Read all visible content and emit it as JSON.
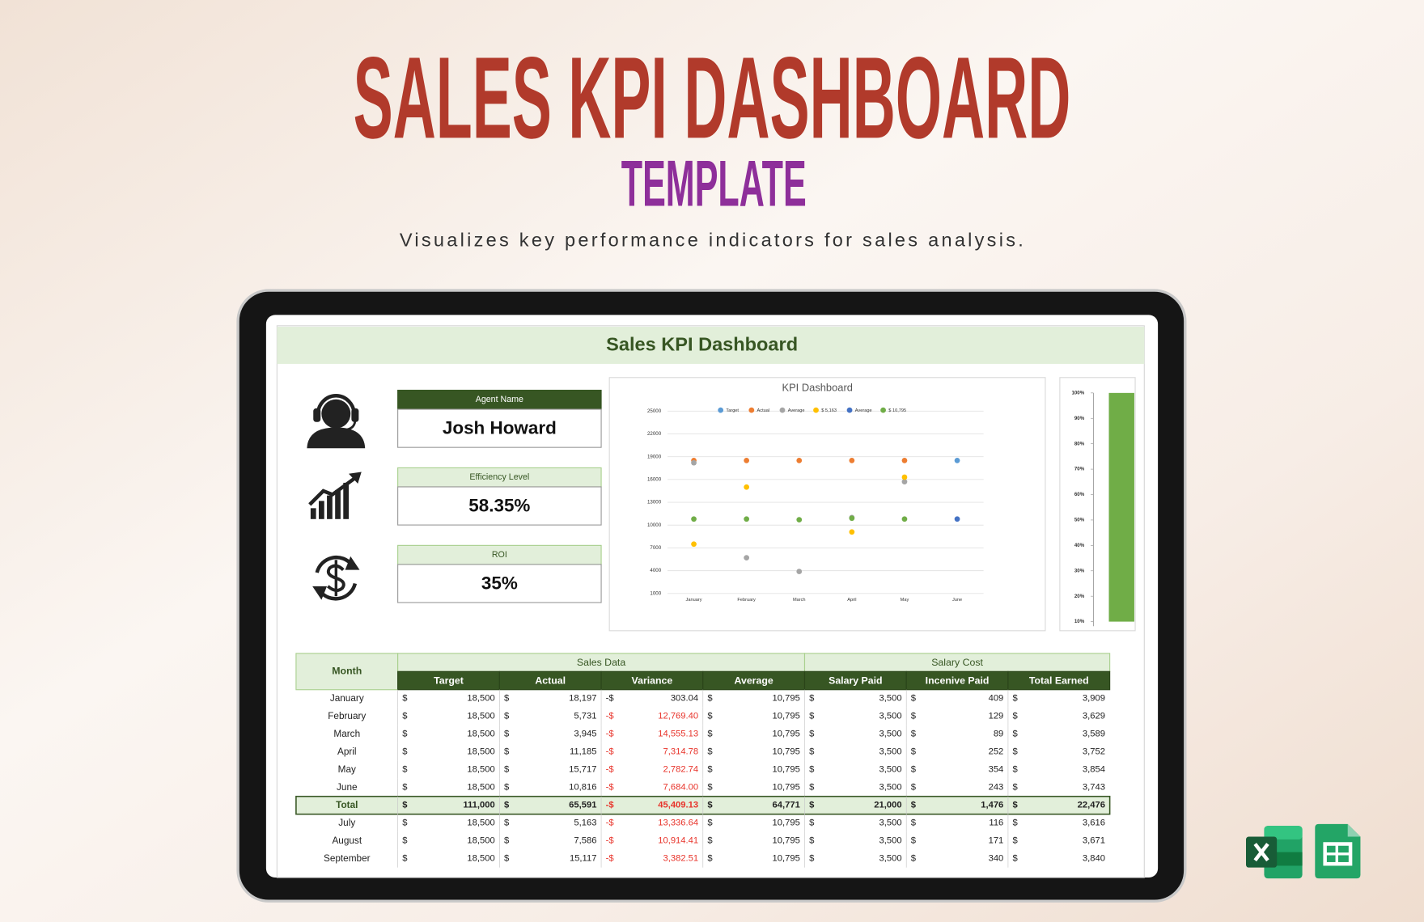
{
  "header": {
    "title": "SALES KPI DASHBOARD",
    "subtitle": "TEMPLATE",
    "description": "Visualizes key performance indicators for sales analysis."
  },
  "dashboard": {
    "title": "Sales KPI Dashboard",
    "cards": [
      {
        "label": "Agent Name",
        "value": "Josh Howard"
      },
      {
        "label": "Efficiency Level",
        "value": "58.35%"
      },
      {
        "label": "ROI",
        "value": "35%"
      }
    ]
  },
  "chart_data": [
    {
      "type": "scatter",
      "title": "KPI Dashboard",
      "categories": [
        "January",
        "February",
        "March",
        "April",
        "May",
        "June"
      ],
      "series": [
        {
          "name": "Target",
          "color": "#5b9bd5",
          "values": [
            null,
            null,
            null,
            null,
            null,
            18500
          ]
        },
        {
          "name": "Actual",
          "color": "#ed7d31",
          "values": [
            18500,
            18500,
            18500,
            18500,
            18500,
            null
          ]
        },
        {
          "name": "Average",
          "color": "#a5a5a5",
          "values": [
            18200,
            5700,
            3900,
            11000,
            15700,
            null
          ]
        },
        {
          "name": "$ 5,163",
          "color": "#ffc000",
          "values": [
            7500,
            15000,
            null,
            9100,
            16300,
            null
          ]
        },
        {
          "name": "Average",
          "color": "#4472c4",
          "values": [
            null,
            null,
            null,
            null,
            null,
            10800
          ]
        },
        {
          "name": "$ 10,795",
          "color": "#70ad47",
          "values": [
            10800,
            10800,
            10700,
            10900,
            10800,
            null
          ]
        }
      ],
      "ylim": [
        1000,
        25000
      ],
      "yticks": [
        1000,
        4000,
        7000,
        10000,
        13000,
        16000,
        19000,
        22000,
        25000
      ],
      "grid": true
    },
    {
      "type": "bar",
      "categories": [
        null
      ],
      "values": [
        100
      ],
      "color": "#70ad47",
      "ylim": [
        10,
        100
      ],
      "yticks": [
        {
          "value": 10,
          "label": "10%"
        },
        {
          "value": 20,
          "label": "20%"
        },
        {
          "value": 30,
          "label": "30%"
        },
        {
          "value": 40,
          "label": "40%"
        },
        {
          "value": 50,
          "label": "50%"
        },
        {
          "value": 60,
          "label": "60%"
        },
        {
          "value": 70,
          "label": "70%"
        },
        {
          "value": 80,
          "label": "80%"
        },
        {
          "value": 90,
          "label": "90%"
        },
        {
          "value": 100,
          "label": "100%"
        }
      ]
    }
  ],
  "table": {
    "month_header": "Month",
    "groups": [
      "Sales Data",
      "Salary Cost"
    ],
    "columns": [
      "Target",
      "Actual",
      "Variance",
      "Average",
      "Salary Paid",
      "Incenive Paid",
      "Total Earned"
    ],
    "currency": "$",
    "negative_currency": "-$",
    "rows": [
      {
        "cells": [
          "January",
          "18,500",
          "18,197",
          "303.04",
          "10,795",
          "3,500",
          "409",
          "3,909"
        ],
        "color": "#222222"
      },
      {
        "cells": [
          "February",
          "18,500",
          "5,731",
          "12,769.40",
          "10,795",
          "3,500",
          "129",
          "3,629"
        ],
        "color": "#e8332a"
      },
      {
        "cells": [
          "March",
          "18,500",
          "3,945",
          "14,555.13",
          "10,795",
          "3,500",
          "89",
          "3,589"
        ],
        "color": "#e8332a"
      },
      {
        "cells": [
          "April",
          "18,500",
          "11,185",
          "7,314.78",
          "10,795",
          "3,500",
          "252",
          "3,752"
        ],
        "color": "#e8332a"
      },
      {
        "cells": [
          "May",
          "18,500",
          "15,717",
          "2,782.74",
          "10,795",
          "3,500",
          "354",
          "3,854"
        ],
        "color": "#e8332a"
      },
      {
        "cells": [
          "June",
          "18,500",
          "10,816",
          "7,684.00",
          "10,795",
          "3,500",
          "243",
          "3,743"
        ],
        "color": "#e8332a"
      }
    ],
    "total": {
      "cells": [
        "Total",
        "111,000",
        "65,591",
        "45,409.13",
        "64,771",
        "21,000",
        "1,476",
        "22,476"
      ],
      "color": "#e8332a"
    },
    "rows_after": [
      {
        "cells": [
          "July",
          "18,500",
          "5,163",
          "13,336.64",
          "10,795",
          "3,500",
          "116",
          "3,616"
        ],
        "color": "#e8332a"
      },
      {
        "cells": [
          "August",
          "18,500",
          "7,586",
          "10,914.41",
          "10,795",
          "3,500",
          "171",
          "3,671"
        ],
        "color": "#e8332a"
      },
      {
        "cells": [
          "September",
          "18,500",
          "15,117",
          "3,382.51",
          "10,795",
          "3,500",
          "340",
          "3,840"
        ],
        "color": "#e8332a"
      }
    ]
  }
}
